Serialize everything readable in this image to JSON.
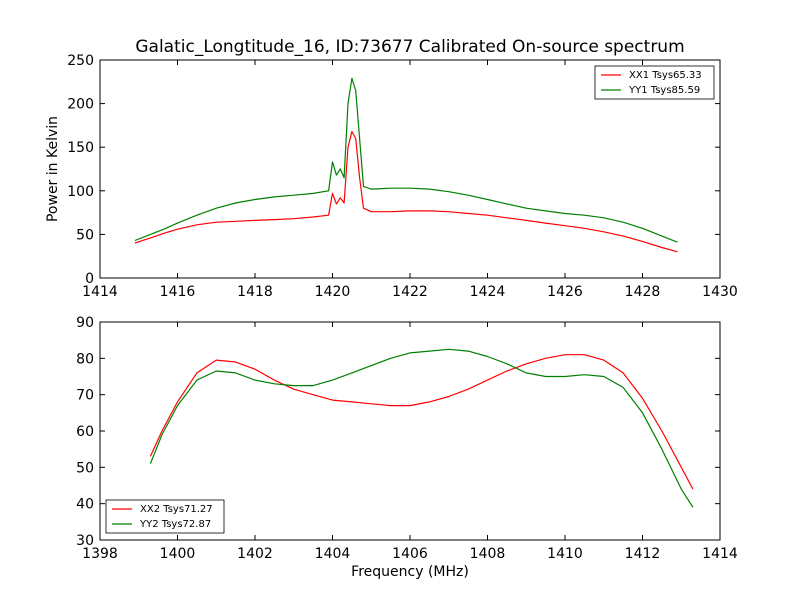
{
  "chart_data": [
    {
      "type": "line",
      "title": "Galatic_Longtitude_16, ID:73677 Calibrated On-source spectrum",
      "xlabel": "",
      "ylabel": "Power in Kelvin",
      "xlim": [
        1414,
        1430
      ],
      "ylim": [
        0,
        250
      ],
      "xticks": [
        "1414",
        "1416",
        "1418",
        "1420",
        "1422",
        "1424",
        "1426",
        "1428",
        "1430"
      ],
      "yticks": [
        "0",
        "50",
        "100",
        "150",
        "200",
        "250"
      ],
      "grid": false,
      "legend_position": "top-right",
      "series": [
        {
          "name": "XX1 Tsys65.33",
          "color": "#ff0000",
          "x": [
            1414.9,
            1415.3,
            1415.7,
            1416.0,
            1416.5,
            1417.0,
            1417.5,
            1418.0,
            1418.5,
            1419.0,
            1419.5,
            1419.9,
            1420.0,
            1420.1,
            1420.2,
            1420.3,
            1420.4,
            1420.5,
            1420.6,
            1420.7,
            1420.8,
            1421.0,
            1421.5,
            1422.0,
            1422.5,
            1423.0,
            1423.5,
            1424.0,
            1424.5,
            1425.0,
            1425.5,
            1426.0,
            1426.5,
            1427.0,
            1427.5,
            1428.0,
            1428.5,
            1428.9
          ],
          "y": [
            40,
            46,
            52,
            56,
            61,
            64,
            65,
            66,
            67,
            68,
            70,
            72,
            97,
            85,
            92,
            86,
            150,
            168,
            160,
            115,
            80,
            76,
            76,
            77,
            77,
            76,
            74,
            72,
            69,
            66,
            63,
            60,
            57,
            53,
            48,
            42,
            35,
            30
          ]
        },
        {
          "name": "YY1 Tsys85.59",
          "color": "#008000",
          "x": [
            1414.9,
            1415.3,
            1415.7,
            1416.0,
            1416.5,
            1417.0,
            1417.5,
            1418.0,
            1418.5,
            1419.0,
            1419.5,
            1419.9,
            1420.0,
            1420.1,
            1420.2,
            1420.3,
            1420.4,
            1420.5,
            1420.6,
            1420.7,
            1420.8,
            1421.0,
            1421.5,
            1422.0,
            1422.5,
            1423.0,
            1423.5,
            1424.0,
            1424.5,
            1425.0,
            1425.5,
            1426.0,
            1426.5,
            1427.0,
            1427.5,
            1428.0,
            1428.5,
            1428.9
          ],
          "y": [
            43,
            50,
            57,
            63,
            72,
            80,
            86,
            90,
            93,
            95,
            97,
            100,
            133,
            118,
            125,
            115,
            200,
            229,
            215,
            160,
            105,
            102,
            103,
            103,
            102,
            99,
            95,
            90,
            85,
            80,
            77,
            74,
            72,
            69,
            64,
            57,
            48,
            41
          ]
        }
      ]
    },
    {
      "type": "line",
      "title": "",
      "xlabel": "Frequency (MHz)",
      "ylabel": "",
      "xlim": [
        1398,
        1414
      ],
      "ylim": [
        30,
        90
      ],
      "xticks": [
        "1398",
        "1400",
        "1402",
        "1404",
        "1406",
        "1408",
        "1410",
        "1412",
        "1414"
      ],
      "yticks": [
        "30",
        "40",
        "50",
        "60",
        "70",
        "80",
        "90"
      ],
      "grid": false,
      "legend_position": "bottom-left",
      "series": [
        {
          "name": "XX2 Tsys71.27",
          "color": "#ff0000",
          "x": [
            1399.3,
            1399.6,
            1400.0,
            1400.5,
            1401.0,
            1401.5,
            1402.0,
            1402.5,
            1403.0,
            1403.5,
            1404.0,
            1404.5,
            1405.0,
            1405.5,
            1406.0,
            1406.5,
            1407.0,
            1407.5,
            1408.0,
            1408.5,
            1409.0,
            1409.5,
            1410.0,
            1410.5,
            1411.0,
            1411.5,
            1412.0,
            1412.5,
            1413.0,
            1413.3
          ],
          "y": [
            53,
            60,
            68,
            76,
            79.5,
            79,
            77,
            74,
            71.5,
            70,
            68.5,
            68,
            67.5,
            67,
            67,
            68,
            69.5,
            71.5,
            74,
            76.5,
            78.5,
            80,
            81,
            81,
            79.5,
            76,
            69,
            60,
            50,
            44
          ]
        },
        {
          "name": "YY2 Tsys72.87",
          "color": "#008000",
          "x": [
            1399.3,
            1399.6,
            1400.0,
            1400.5,
            1401.0,
            1401.5,
            1402.0,
            1402.5,
            1403.0,
            1403.5,
            1404.0,
            1404.5,
            1405.0,
            1405.5,
            1406.0,
            1406.5,
            1407.0,
            1407.5,
            1408.0,
            1408.5,
            1409.0,
            1409.5,
            1410.0,
            1410.5,
            1411.0,
            1411.5,
            1412.0,
            1412.5,
            1413.0,
            1413.3
          ],
          "y": [
            51,
            59,
            67,
            74,
            76.5,
            76,
            74,
            73,
            72.5,
            72.5,
            74,
            76,
            78,
            80,
            81.5,
            82,
            82.5,
            82,
            80.5,
            78.5,
            76,
            75,
            75,
            75.5,
            75,
            72,
            65,
            55,
            44,
            39
          ]
        }
      ]
    }
  ]
}
